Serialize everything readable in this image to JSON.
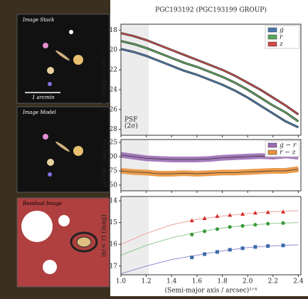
{
  "images": [
    {
      "label": "Image Stack"
    },
    {
      "label": "Image Model"
    },
    {
      "label": "Residual Image"
    }
  ],
  "scale_bar": "1 arcmin",
  "chart_data": [
    {
      "type": "line",
      "title": "PGC193192 (PGC193199 GROUP)",
      "ylabel": "μ(r) (mag arcsec⁻²)",
      "annotation": [
        "PSF",
        "(2σ)"
      ],
      "shade": [
        1.0,
        1.22
      ],
      "x": [
        1.0,
        1.1,
        1.2,
        1.3,
        1.4,
        1.5,
        1.6,
        1.7,
        1.8,
        1.9,
        2.0,
        2.1,
        2.2,
        2.3,
        2.4
      ],
      "series": [
        {
          "name": "g",
          "color": "#4a7ab0",
          "values": [
            19.9,
            20.2,
            20.6,
            21.1,
            21.6,
            22.1,
            22.5,
            23.0,
            23.5,
            24.1,
            24.8,
            25.6,
            26.4,
            27.2,
            27.8
          ]
        },
        {
          "name": "r",
          "color": "#5aa85a",
          "values": [
            19.1,
            19.4,
            19.8,
            20.3,
            20.8,
            21.3,
            21.7,
            22.2,
            22.7,
            23.3,
            24.0,
            24.8,
            25.6,
            26.3,
            27.2
          ]
        },
        {
          "name": "z",
          "color": "#d04a4a",
          "values": [
            18.3,
            18.6,
            19.0,
            19.5,
            20.0,
            20.5,
            21.0,
            21.5,
            22.0,
            22.6,
            23.3,
            24.0,
            24.8,
            25.6,
            26.5
          ]
        }
      ],
      "xlim": [
        1.0,
        2.42
      ],
      "xticks": [
        1.0,
        1.2,
        1.4,
        1.6,
        1.8,
        2.0,
        2.2,
        2.4
      ],
      "ylim": [
        28.6,
        17.4
      ],
      "yticks": [
        18,
        20,
        22,
        24,
        26,
        28
      ],
      "legend": "upper-right"
    },
    {
      "type": "band",
      "ylabel": "Color (mag)",
      "shade": [
        1.0,
        1.22
      ],
      "x": [
        1.0,
        1.1,
        1.2,
        1.3,
        1.4,
        1.5,
        1.6,
        1.7,
        1.8,
        1.9,
        2.0,
        2.1,
        2.2,
        2.3,
        2.4
      ],
      "series": [
        {
          "name": "g − r",
          "color": "#9b6bb5",
          "values": [
            1.03,
            1.0,
            0.97,
            0.96,
            0.95,
            0.95,
            0.95,
            0.96,
            0.98,
            0.99,
            1.0,
            1.01,
            1.0,
            1.02,
            1.0
          ]
        },
        {
          "name": "r − z",
          "color": "#e8913a",
          "values": [
            0.75,
            0.73,
            0.72,
            0.7,
            0.7,
            0.71,
            0.7,
            0.71,
            0.72,
            0.72,
            0.73,
            0.74,
            0.75,
            0.75,
            0.78
          ]
        }
      ],
      "xlim": [
        1.0,
        2.42
      ],
      "xticks": [
        1.0,
        1.2,
        1.4,
        1.6,
        1.8,
        2.0,
        2.2,
        2.4
      ],
      "ylim": [
        0.4,
        1.3
      ],
      "yticks": [
        {
          "value": 0.5,
          "label": "0.50"
        },
        {
          "value": 0.75,
          "label": "0.75"
        },
        {
          "value": 1.0,
          "label": "1.00"
        },
        {
          "value": 1.25,
          "label": "1.25"
        }
      ],
      "legend": "upper-right"
    },
    {
      "type": "scatter",
      "ylabel": "m(< r) (mag)",
      "xlabel": "(Semi-major axis / arcsec)¹ᐟ⁴",
      "shade": [
        1.0,
        1.22
      ],
      "x": [
        1.56,
        1.66,
        1.76,
        1.86,
        1.96,
        2.06,
        2.16,
        2.28
      ],
      "series": [
        {
          "color": "#d42a2a",
          "marker": "triangle",
          "values": [
            14.9,
            14.8,
            14.7,
            14.65,
            14.6,
            14.55,
            14.52,
            14.5
          ]
        },
        {
          "color": "#3a9a3a",
          "marker": "circle",
          "values": [
            15.55,
            15.4,
            15.3,
            15.2,
            15.15,
            15.1,
            15.05,
            15.02
          ]
        },
        {
          "color": "#3a6aaa",
          "marker": "square",
          "values": [
            16.6,
            16.45,
            16.35,
            16.25,
            16.18,
            16.12,
            16.08,
            16.05
          ]
        }
      ],
      "fit_x": [
        1.0,
        1.2,
        1.4,
        1.6,
        1.8,
        2.0,
        2.2,
        2.4
      ],
      "fits": [
        {
          "color": "#f0a0a0",
          "values": [
            16.0,
            15.5,
            15.1,
            14.85,
            14.7,
            14.58,
            14.5,
            14.45
          ]
        },
        {
          "color": "#90c890",
          "values": [
            16.5,
            16.05,
            15.7,
            15.45,
            15.25,
            15.12,
            15.04,
            15.0
          ]
        },
        {
          "color": "#9090d0",
          "values": [
            17.35,
            17.0,
            16.7,
            16.5,
            16.3,
            16.15,
            16.07,
            16.02
          ]
        }
      ],
      "xlim": [
        1.0,
        2.42
      ],
      "xticks": [
        {
          "value": 1.0,
          "label": "1.0"
        },
        1.2,
        1.4,
        1.6,
        1.8,
        {
          "value": 2.0,
          "label": "2.0"
        },
        2.2,
        2.4
      ],
      "ylim": [
        17.4,
        13.8
      ],
      "yticks": [
        14,
        15,
        16,
        17
      ]
    }
  ]
}
